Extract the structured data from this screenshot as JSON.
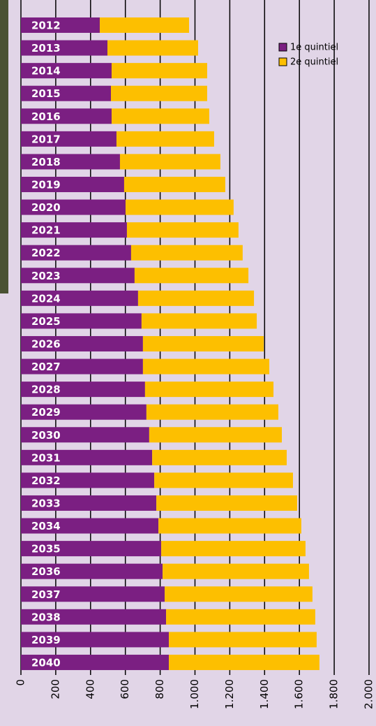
{
  "chart_data": {
    "type": "stacked-bar-horizontal",
    "categories": [
      "2012",
      "2013",
      "2014",
      "2015",
      "2016",
      "2017",
      "2018",
      "2019",
      "2020",
      "2021",
      "2022",
      "2023",
      "2024",
      "2025",
      "2026",
      "2027",
      "2028",
      "2029",
      "2030",
      "2031",
      "2032",
      "2033",
      "2034",
      "2035",
      "2036",
      "2037",
      "2038",
      "2039",
      "2040"
    ],
    "series": [
      {
        "name": "1e quintiel",
        "color": "#7b1f82",
        "values": [
          453,
          497,
          521,
          517,
          521,
          549,
          569,
          593,
          601,
          609,
          633,
          653,
          673,
          693,
          701,
          701,
          713,
          721,
          737,
          754,
          766,
          778,
          790,
          806,
          814,
          826,
          834,
          850,
          850
        ]
      },
      {
        "name": "2e quintiel",
        "color": "#fdbf00",
        "values": [
          513,
          521,
          549,
          553,
          561,
          561,
          577,
          581,
          621,
          641,
          641,
          654,
          666,
          662,
          694,
          726,
          738,
          758,
          762,
          773,
          797,
          809,
          821,
          829,
          841,
          849,
          857,
          849,
          865
        ]
      }
    ],
    "xlim": [
      0,
      2000
    ],
    "xticks": [
      0,
      200,
      400,
      600,
      800,
      {
        "value": 1000,
        "label": "1.000"
      },
      {
        "value": 1200,
        "label": "1.200"
      },
      {
        "value": 1400,
        "label": "1.400"
      },
      {
        "value": 1600,
        "label": "1.600"
      },
      {
        "value": 1800,
        "label": "1.800"
      },
      {
        "value": 2000,
        "label": "2.000"
      }
    ],
    "grid": true,
    "legend": "top-right"
  }
}
